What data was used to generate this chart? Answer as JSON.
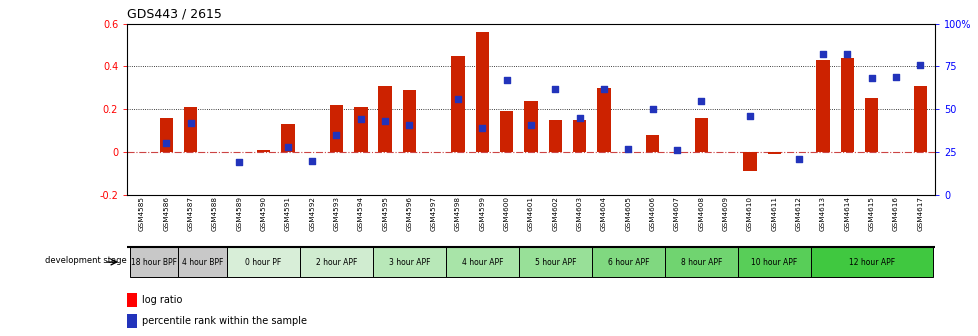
{
  "title": "GDS443 / 2615",
  "samples": [
    "GSM4585",
    "GSM4586",
    "GSM4587",
    "GSM4588",
    "GSM4589",
    "GSM4590",
    "GSM4591",
    "GSM4592",
    "GSM4593",
    "GSM4594",
    "GSM4595",
    "GSM4596",
    "GSM4597",
    "GSM4598",
    "GSM4599",
    "GSM4600",
    "GSM4601",
    "GSM4602",
    "GSM4603",
    "GSM4604",
    "GSM4605",
    "GSM4606",
    "GSM4607",
    "GSM4608",
    "GSM4609",
    "GSM4610",
    "GSM4611",
    "GSM4612",
    "GSM4613",
    "GSM4614",
    "GSM4615",
    "GSM4616",
    "GSM4617"
  ],
  "log_ratio": [
    0.0,
    0.16,
    0.21,
    0.0,
    0.0,
    0.01,
    0.13,
    0.0,
    0.22,
    0.21,
    0.31,
    0.29,
    0.0,
    0.45,
    0.56,
    0.19,
    0.24,
    0.15,
    0.15,
    0.3,
    0.0,
    0.08,
    0.0,
    0.16,
    0.0,
    -0.09,
    -0.01,
    0.0,
    0.43,
    0.44,
    0.25,
    0.0,
    0.31
  ],
  "percentile_pct": [
    0.0,
    30.0,
    42.0,
    0.0,
    19.0,
    0.0,
    28.0,
    20.0,
    35.0,
    44.0,
    43.0,
    41.0,
    0.0,
    56.0,
    39.0,
    67.0,
    41.0,
    62.0,
    45.0,
    62.0,
    27.0,
    50.0,
    26.0,
    55.0,
    0.0,
    46.0,
    0.0,
    21.0,
    82.0,
    82.0,
    68.0,
    69.0,
    76.0
  ],
  "stages": [
    {
      "label": "18 hour BPF",
      "start": 0,
      "end": 2,
      "color": "#c8c8c8"
    },
    {
      "label": "4 hour BPF",
      "start": 2,
      "end": 4,
      "color": "#c8c8c8"
    },
    {
      "label": "0 hour PF",
      "start": 4,
      "end": 7,
      "color": "#d8eed8"
    },
    {
      "label": "2 hour APF",
      "start": 7,
      "end": 10,
      "color": "#d0ecd0"
    },
    {
      "label": "3 hour APF",
      "start": 10,
      "end": 13,
      "color": "#b8e8b8"
    },
    {
      "label": "4 hour APF",
      "start": 13,
      "end": 16,
      "color": "#a8e4a8"
    },
    {
      "label": "5 hour APF",
      "start": 16,
      "end": 19,
      "color": "#98e098"
    },
    {
      "label": "6 hour APF",
      "start": 19,
      "end": 22,
      "color": "#80d880"
    },
    {
      "label": "8 hour APF",
      "start": 22,
      "end": 25,
      "color": "#70d470"
    },
    {
      "label": "10 hour APF",
      "start": 25,
      "end": 28,
      "color": "#58ce58"
    },
    {
      "label": "12 hour APF",
      "start": 28,
      "end": 33,
      "color": "#40c840"
    }
  ],
  "ylim_left": [
    -0.2,
    0.6
  ],
  "ylim_right": [
    0,
    100
  ],
  "bar_color": "#cc2200",
  "point_color": "#2233bb",
  "hline0_color": "#cc4444",
  "dotted_color": "#555555"
}
